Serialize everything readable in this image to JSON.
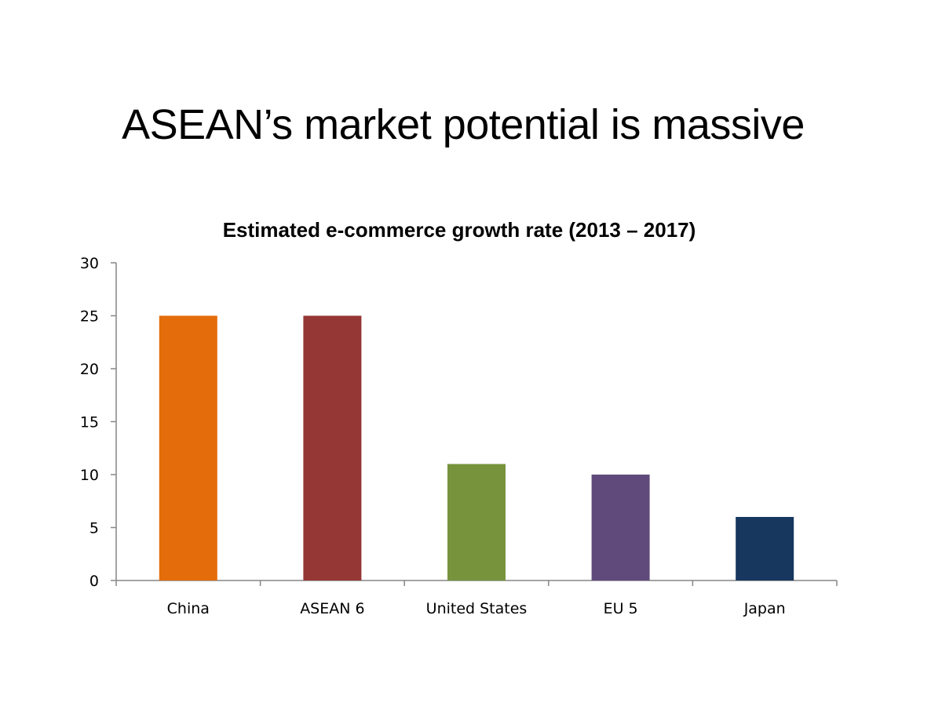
{
  "slide": {
    "title": "ASEAN’s market potential is massive"
  },
  "chart_data": {
    "type": "bar",
    "title": "Estimated e-commerce growth rate (2013 – 2017)",
    "xlabel": "",
    "ylabel": "",
    "categories": [
      "China",
      "ASEAN 6",
      "United States",
      "EU 5",
      "Japan"
    ],
    "values": [
      25,
      25,
      11,
      10,
      6
    ],
    "colors": [
      "#e46c0a",
      "#953735",
      "#77933c",
      "#604a7b",
      "#17375e"
    ],
    "ylim": [
      0,
      30
    ],
    "yticks": [
      0,
      5,
      10,
      15,
      20,
      25,
      30
    ],
    "grid": false,
    "legend": "none"
  }
}
